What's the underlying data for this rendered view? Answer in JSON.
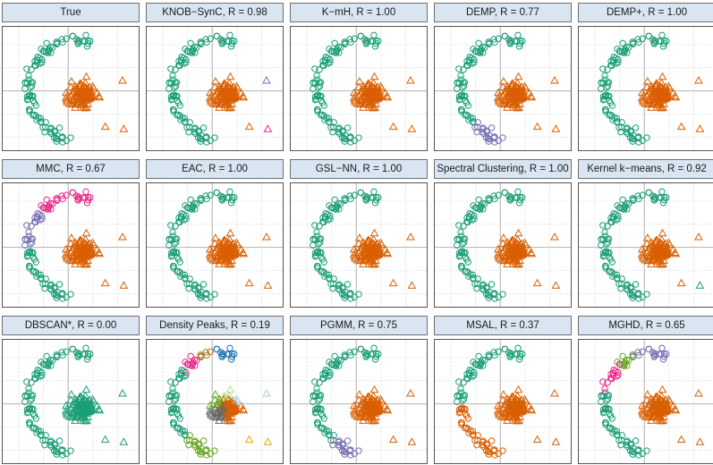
{
  "chart_data": {
    "type": "scatter",
    "layout": "faceted grid 3 rows x 5 columns",
    "grid": true,
    "axis_ranges": {
      "x": [
        -2.4,
        2.6
      ],
      "y": [
        -2.3,
        2.5
      ]
    },
    "panels": [
      {
        "title": "True",
        "method": "True",
        "R": null
      },
      {
        "title": "KNOB−SynC, R = 0.98",
        "method": "KNOB−SynC",
        "R": 0.98
      },
      {
        "title": "K−mH, R = 1.00",
        "method": "K−mH",
        "R": 1.0
      },
      {
        "title": "DEMP, R = 0.77",
        "method": "DEMP",
        "R": 0.77
      },
      {
        "title": "DEMP+, R = 1.00",
        "method": "DEMP+",
        "R": 1.0
      },
      {
        "title": "MMC, R = 0.67",
        "method": "MMC",
        "R": 0.67
      },
      {
        "title": "EAC, R = 1.00",
        "method": "EAC",
        "R": 1.0
      },
      {
        "title": "GSL−NN, R = 1.00",
        "method": "GSL−NN",
        "R": 1.0
      },
      {
        "title": "Spectral Clustering, R = 1.00",
        "method": "Spectral Clustering",
        "R": 1.0
      },
      {
        "title": "Kernel k−means, R = 0.92",
        "method": "Kernel k−means",
        "R": 0.92
      },
      {
        "title": "DBSCAN*, R = 0.00",
        "method": "DBSCAN*",
        "R": 0.0
      },
      {
        "title": "Density Peaks, R = 0.19",
        "method": "Density Peaks",
        "R": 0.19
      },
      {
        "title": "PGMM, R = 0.75",
        "method": "PGMM",
        "R": 0.75
      },
      {
        "title": "MSAL, R = 0.37",
        "method": "MSAL",
        "R": 0.37
      },
      {
        "title": "MGHD, R = 0.65",
        "method": "MGHD",
        "R": 0.65
      }
    ],
    "series": [
      {
        "shape": "circle",
        "group": "arc (crescent)",
        "count": 100
      },
      {
        "shape": "triangle",
        "group": "central blob",
        "count": 100
      }
    ],
    "colors": {
      "teal": "#1b9e77",
      "orange": "#d95f02",
      "purple": "#7570b3",
      "magenta": "#e7298a",
      "green": "#66a61e",
      "gold": "#e6ab02",
      "brown": "#a6761d",
      "grey": "#666666",
      "blue": "#1f78b4",
      "lightgreen": "#b2df8a",
      "lightblue": "#a6cee3"
    }
  }
}
